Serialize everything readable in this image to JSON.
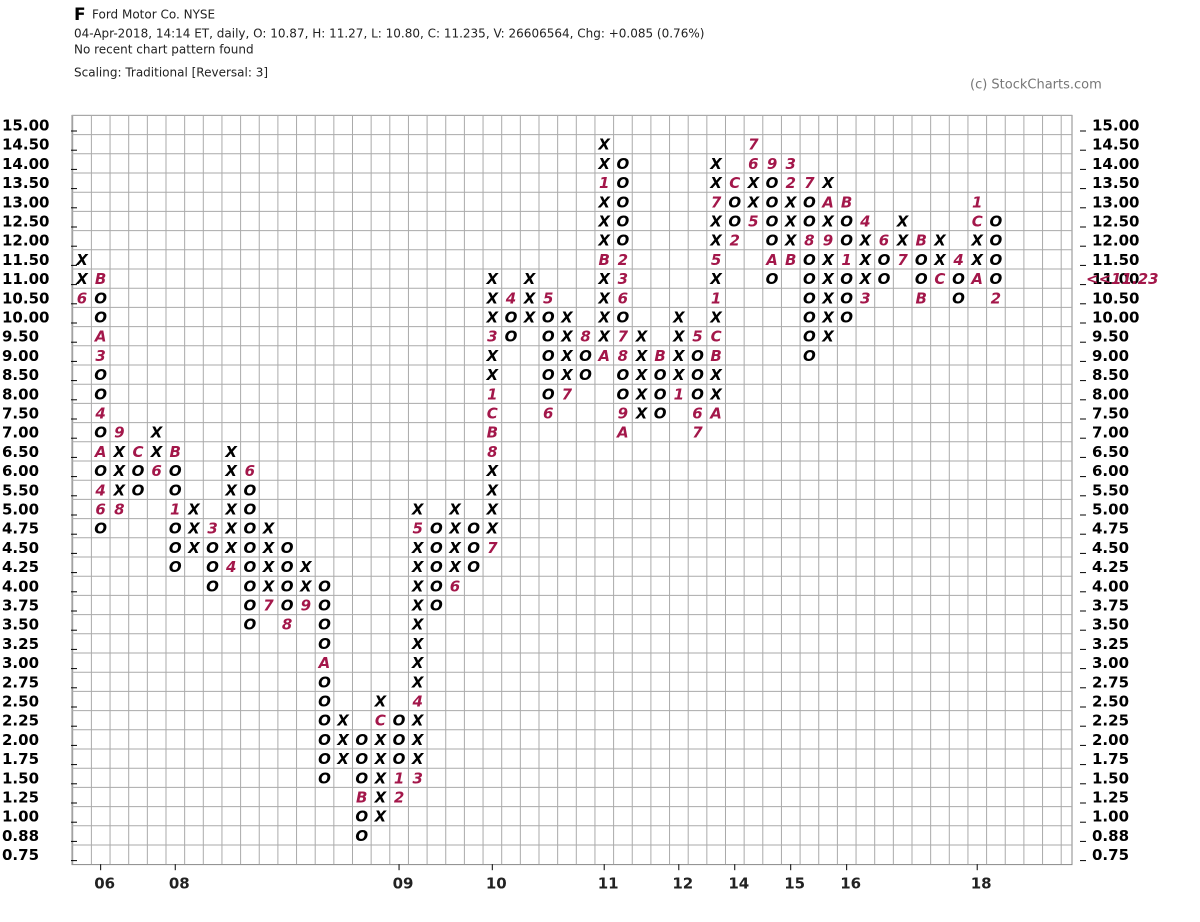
{
  "chart_data": {
    "type": "point_and_figure",
    "symbol": "F",
    "title": "Ford Motor Co.  NYSE",
    "subtitle": "04-Apr-2018, 14:14 ET, daily, O: 10.87, H: 11.27, L: 10.80, C: 11.235, V: 26606564, Chg: +0.085 (0.76%)",
    "pattern_note": "No recent chart pattern found",
    "scaling": "Scaling: Traditional [Reversal: 3]",
    "copyright": "(c) StockCharts.com",
    "symbol_color": "#000000",
    "month_color": "#a3174a",
    "grid": true,
    "yticks": [
      {
        "value": 15,
        "label": "15.00"
      },
      {
        "value": 14.5,
        "label": "14.50"
      },
      {
        "value": 14,
        "label": "14.00"
      },
      {
        "value": 13.5,
        "label": "13.50"
      },
      {
        "value": 13,
        "label": "13.00"
      },
      {
        "value": 12.5,
        "label": "12.50"
      },
      {
        "value": 12,
        "label": "12.00"
      },
      {
        "value": 11.5,
        "label": "11.50"
      },
      {
        "value": 11,
        "label": "11.00"
      },
      {
        "value": 10.5,
        "label": "10.50"
      },
      {
        "value": 10,
        "label": "10.00"
      },
      {
        "value": 9.5,
        "label": "9.50"
      },
      {
        "value": 9,
        "label": "9.00"
      },
      {
        "value": 8.5,
        "label": "8.50"
      },
      {
        "value": 8,
        "label": "8.00"
      },
      {
        "value": 7.5,
        "label": "7.50"
      },
      {
        "value": 7,
        "label": "7.00"
      },
      {
        "value": 6.5,
        "label": "6.50"
      },
      {
        "value": 6,
        "label": "6.00"
      },
      {
        "value": 5.5,
        "label": "5.50"
      },
      {
        "value": 5,
        "label": "5.00"
      },
      4.75,
      {
        "value": 4.5,
        "label": "4.50"
      },
      4.25,
      {
        "value": 4,
        "label": "4.00"
      },
      3.75,
      {
        "value": 3.5,
        "label": "3.50"
      },
      3.25,
      {
        "value": 3,
        "label": "3.00"
      },
      2.75,
      {
        "value": 2.5,
        "label": "2.50"
      },
      2.25,
      {
        "value": 2,
        "label": "2.00"
      },
      1.75,
      {
        "value": 1.5,
        "label": "1.50"
      },
      1.25,
      {
        "value": 1,
        "label": "1.00"
      },
      0.88,
      0.75
    ],
    "last_price": {
      "value": 11.23,
      "label": "<<11.23"
    },
    "categories": [
      null,
      "06",
      null,
      null,
      null,
      "08",
      null,
      null,
      null,
      null,
      null,
      null,
      null,
      null,
      null,
      null,
      null,
      "09",
      null,
      null,
      null,
      null,
      "10",
      null,
      null,
      null,
      null,
      null,
      "11",
      null,
      null,
      null,
      "12",
      null,
      null,
      "14",
      null,
      null,
      "15",
      null,
      null,
      "16",
      null,
      null,
      null,
      null,
      null,
      null,
      "18",
      null
    ],
    "columns": [
      {
        "top": 11.5,
        "boxes": [
          "X",
          "X",
          "6"
        ]
      },
      {
        "top": 11,
        "boxes": [
          "B",
          "O",
          "O",
          "A",
          "3",
          "O",
          "O",
          "4",
          "O",
          "A",
          "O",
          "4",
          "6",
          "O"
        ]
      },
      {
        "top": 7,
        "boxes": [
          "9",
          "X",
          "X",
          "X",
          "8"
        ]
      },
      {
        "top": 6.5,
        "boxes": [
          "C",
          "O",
          "O"
        ]
      },
      {
        "top": 7,
        "boxes": [
          "X",
          "X",
          "6"
        ]
      },
      {
        "top": 6.5,
        "boxes": [
          "B",
          "O",
          "O",
          "1",
          "O",
          "O",
          "O"
        ]
      },
      {
        "top": 5,
        "boxes": [
          "X",
          "X",
          "X"
        ]
      },
      {
        "top": 4.75,
        "boxes": [
          "3",
          "O",
          "O",
          "O"
        ]
      },
      {
        "top": 6.5,
        "boxes": [
          "X",
          "X",
          "X",
          "X",
          "X",
          "X",
          "4"
        ]
      },
      {
        "top": 6,
        "boxes": [
          "6",
          "O",
          "O",
          "O",
          "O",
          "O",
          "O",
          "O",
          "O"
        ]
      },
      {
        "top": 4.75,
        "boxes": [
          "X",
          "X",
          "X",
          "X",
          "7"
        ]
      },
      {
        "top": 4.5,
        "boxes": [
          "O",
          "O",
          "O",
          "O",
          "8"
        ]
      },
      {
        "top": 4.25,
        "boxes": [
          "X",
          "X",
          "9"
        ]
      },
      {
        "top": 4,
        "boxes": [
          "O",
          "O",
          "O",
          "O",
          "A",
          "O",
          "O",
          "O",
          "O",
          "O",
          "O"
        ]
      },
      {
        "top": 2.25,
        "boxes": [
          "X",
          "X",
          "X"
        ]
      },
      {
        "top": 2,
        "boxes": [
          "O",
          "O",
          "O",
          "B",
          "O",
          "O"
        ]
      },
      {
        "top": 2.5,
        "boxes": [
          "X",
          "C",
          "X",
          "X",
          "X",
          "X",
          "X"
        ]
      },
      {
        "top": 2.25,
        "boxes": [
          "O",
          "O",
          "O",
          "1",
          "2"
        ]
      },
      {
        "top": 5,
        "boxes": [
          "X",
          "5",
          "X",
          "X",
          "X",
          "X",
          "X",
          "X",
          "X",
          "X",
          "4",
          "X",
          "X",
          "X",
          "3"
        ]
      },
      {
        "top": 4.75,
        "boxes": [
          "O",
          "O",
          "O",
          "O",
          "O"
        ]
      },
      {
        "top": 5,
        "boxes": [
          "X",
          "X",
          "X",
          "X",
          "6"
        ]
      },
      {
        "top": 4.75,
        "boxes": [
          "O",
          "O",
          "O"
        ]
      },
      {
        "top": 11,
        "boxes": [
          "X",
          "X",
          "X",
          "3",
          "X",
          "X",
          "1",
          "C",
          "B",
          "8",
          "X",
          "X",
          "X",
          "X",
          "7"
        ]
      },
      {
        "top": 10.5,
        "boxes": [
          "4",
          "O",
          "O"
        ]
      },
      {
        "top": 11,
        "boxes": [
          "X",
          "X",
          "X"
        ]
      },
      {
        "top": 10.5,
        "boxes": [
          "5",
          "O",
          "O",
          "O",
          "O",
          "O",
          "6"
        ]
      },
      {
        "top": 10,
        "boxes": [
          "X",
          "X",
          "X",
          "X",
          "7"
        ]
      },
      {
        "top": 9.5,
        "boxes": [
          "8",
          "O",
          "O"
        ]
      },
      {
        "top": 14.5,
        "boxes": [
          "X",
          "X",
          "1",
          "X",
          "X",
          "X",
          "B",
          "X",
          "X",
          "X",
          "X",
          "A"
        ]
      },
      {
        "top": 14,
        "boxes": [
          "O",
          "O",
          "O",
          "O",
          "O",
          "2",
          "3",
          "6",
          "O",
          "7",
          "8",
          "O",
          "O",
          "9",
          "A"
        ]
      },
      {
        "top": 9.5,
        "boxes": [
          "X",
          "X",
          "X",
          "X",
          "X"
        ]
      },
      {
        "top": 9,
        "boxes": [
          "B",
          "O",
          "O",
          "O"
        ]
      },
      {
        "top": 10,
        "boxes": [
          "X",
          "X",
          "X",
          "X",
          "1"
        ]
      },
      {
        "top": 9.5,
        "boxes": [
          "5",
          "O",
          "O",
          "O",
          "6",
          "7"
        ]
      },
      {
        "top": 14,
        "boxes": [
          "X",
          "X",
          "7",
          "X",
          "X",
          "5",
          "X",
          "1",
          "X",
          "C",
          "B",
          "X",
          "X",
          "A"
        ]
      },
      {
        "top": 13.5,
        "boxes": [
          "C",
          "O",
          "O",
          "2"
        ]
      },
      {
        "top": 14.5,
        "boxes": [
          "7",
          "6",
          "X",
          "X",
          "5"
        ]
      },
      {
        "top": 14,
        "boxes": [
          "9",
          "O",
          "O",
          "O",
          "O",
          "A",
          "O"
        ]
      },
      {
        "top": 14,
        "boxes": [
          "3",
          "2",
          "X",
          "X",
          "X",
          "B"
        ]
      },
      {
        "top": 13.5,
        "boxes": [
          "7",
          "O",
          "O",
          "8",
          "O",
          "O",
          "O",
          "O",
          "O",
          "O"
        ]
      },
      {
        "top": 13.5,
        "boxes": [
          "X",
          "A",
          "X",
          "9",
          "X",
          "X",
          "X",
          "X",
          "X"
        ]
      },
      {
        "top": 13,
        "boxes": [
          "B",
          "O",
          "O",
          "1",
          "O",
          "O",
          "O"
        ]
      },
      {
        "top": 12.5,
        "boxes": [
          "4",
          "X",
          "X",
          "X",
          "3"
        ]
      },
      {
        "top": 12,
        "boxes": [
          "6",
          "O",
          "O"
        ]
      },
      {
        "top": 12.5,
        "boxes": [
          "X",
          "X",
          "7"
        ]
      },
      {
        "top": 12,
        "boxes": [
          "B",
          "O",
          "O",
          "B"
        ]
      },
      {
        "top": 12,
        "boxes": [
          "X",
          "X",
          "C"
        ]
      },
      {
        "top": 11.5,
        "boxes": [
          "4",
          "O",
          "O"
        ]
      },
      {
        "top": 13,
        "boxes": [
          "1",
          "C",
          "X",
          "X",
          "A"
        ]
      },
      {
        "top": 12.5,
        "boxes": [
          "O",
          "O",
          "O",
          "O",
          "2"
        ]
      }
    ]
  }
}
